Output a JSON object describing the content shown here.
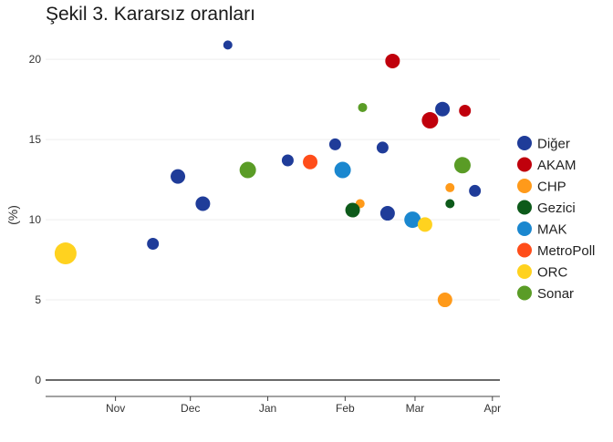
{
  "chart_data": {
    "type": "scatter",
    "title": "Şekil 3. Kararsız oranları",
    "ylabel": "(%)",
    "xlabel": "",
    "ylim": [
      0,
      22
    ],
    "xlim": [
      "2022-10-04",
      "2023-04-04"
    ],
    "yticks": [
      0,
      5,
      10,
      15,
      20
    ],
    "xticks": [
      {
        "date": "2022-11-01",
        "label": "Nov"
      },
      {
        "date": "2022-12-01",
        "label": "Dec"
      },
      {
        "date": "2023-01-01",
        "label": "Jan"
      },
      {
        "date": "2023-02-01",
        "label": "Feb"
      },
      {
        "date": "2023-03-01",
        "label": "Mar"
      },
      {
        "date": "2023-04-01",
        "label": "Apr"
      }
    ],
    "grid": true,
    "legend_position": "right",
    "series": [
      {
        "name": "Diğer",
        "color": "#1f3c99",
        "points": [
          {
            "x": "2022-11-16",
            "y": 8.5,
            "size": "medium"
          },
          {
            "x": "2022-11-26",
            "y": 12.7,
            "size": "large"
          },
          {
            "x": "2022-12-06",
            "y": 11.0,
            "size": "large"
          },
          {
            "x": "2022-12-16",
            "y": 20.9,
            "size": "small"
          },
          {
            "x": "2023-01-09",
            "y": 13.7,
            "size": "medium"
          },
          {
            "x": "2023-01-28",
            "y": 14.7,
            "size": "medium"
          },
          {
            "x": "2023-02-16",
            "y": 14.5,
            "size": "medium"
          },
          {
            "x": "2023-02-18",
            "y": 10.4,
            "size": "large"
          },
          {
            "x": "2023-03-12",
            "y": 16.9,
            "size": "large"
          },
          {
            "x": "2023-03-25",
            "y": 11.8,
            "size": "medium"
          }
        ]
      },
      {
        "name": "AKAM",
        "color": "#c0000c",
        "points": [
          {
            "x": "2023-02-20",
            "y": 19.9,
            "size": "large"
          },
          {
            "x": "2023-03-07",
            "y": 16.2,
            "size": "xlarge"
          },
          {
            "x": "2023-03-21",
            "y": 16.8,
            "size": "medium"
          }
        ]
      },
      {
        "name": "CHP",
        "color": "#ff9a1a",
        "points": [
          {
            "x": "2023-02-07",
            "y": 11.0,
            "size": "small"
          },
          {
            "x": "2023-03-13",
            "y": 5.0,
            "size": "large"
          },
          {
            "x": "2023-03-15",
            "y": 12.0,
            "size": "small"
          }
        ]
      },
      {
        "name": "Gezici",
        "color": "#0d5a1a",
        "points": [
          {
            "x": "2023-02-04",
            "y": 10.6,
            "size": "large"
          },
          {
            "x": "2023-03-15",
            "y": 11.0,
            "size": "small"
          }
        ]
      },
      {
        "name": "MAK",
        "color": "#1a87cf",
        "points": [
          {
            "x": "2023-01-31",
            "y": 13.1,
            "size": "xlarge"
          },
          {
            "x": "2023-02-28",
            "y": 10.0,
            "size": "xlarge"
          }
        ]
      },
      {
        "name": "MetroPoll",
        "color": "#ff4d1a",
        "points": [
          {
            "x": "2023-01-18",
            "y": 13.6,
            "size": "large"
          }
        ]
      },
      {
        "name": "ORC",
        "color": "#ffd21f",
        "points": [
          {
            "x": "2022-10-12",
            "y": 7.9,
            "size": "huge"
          },
          {
            "x": "2023-03-05",
            "y": 9.7,
            "size": "large"
          }
        ]
      },
      {
        "name": "Sonar",
        "color": "#5a9c26",
        "points": [
          {
            "x": "2022-12-24",
            "y": 13.1,
            "size": "xlarge"
          },
          {
            "x": "2023-02-08",
            "y": 17.0,
            "size": "small"
          },
          {
            "x": "2023-03-20",
            "y": 13.4,
            "size": "xlarge"
          }
        ]
      }
    ]
  }
}
